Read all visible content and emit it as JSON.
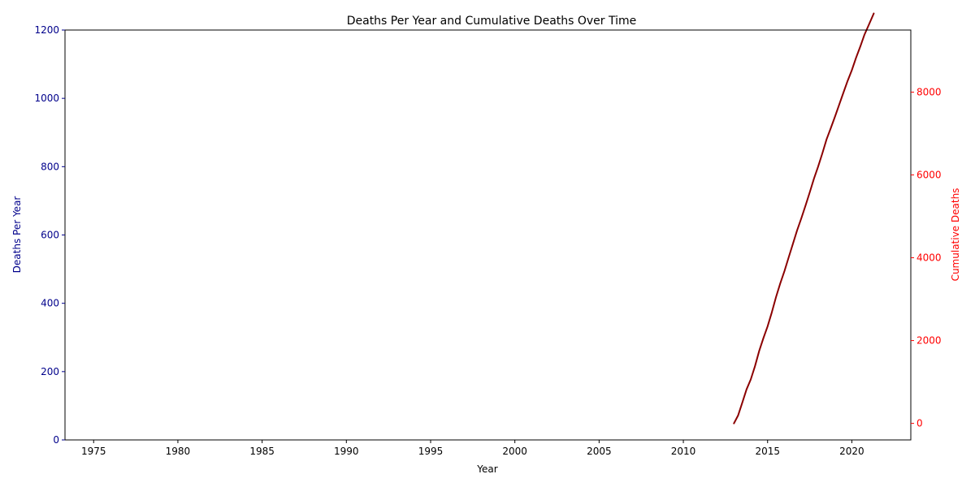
{
  "chart_data": {
    "type": "line",
    "title": "Deaths Per Year and Cumulative Deaths Over Time",
    "xlabel": "Year",
    "ylabel": "Deaths Per Year",
    "y2label": "Cumulative Deaths",
    "xlim": [
      1973.3,
      2023.5
    ],
    "ylim": [
      0,
      1200
    ],
    "y2lim": [
      -400,
      9500
    ],
    "x_ticks": [
      1975,
      1980,
      1985,
      1990,
      1995,
      2000,
      2005,
      2010,
      2015,
      2020
    ],
    "y_ticks": [
      0,
      200,
      400,
      600,
      800,
      1000,
      1200
    ],
    "y2_ticks": [
      0,
      2000,
      4000,
      6000,
      8000
    ],
    "grid": false,
    "colors": {
      "left_axis": "#00008b",
      "right_axis": "#ff0000",
      "line": "#8b0000",
      "text": "#000000"
    },
    "series": [
      {
        "axis": "right",
        "x": [
          2013.0,
          2013.25,
          2013.5,
          2013.75,
          2014.0,
          2014.25,
          2014.5,
          2014.75,
          2015.0,
          2015.25,
          2015.5,
          2015.75,
          2016.0,
          2016.25,
          2016.5,
          2016.75,
          2017.0,
          2017.25,
          2017.5,
          2017.75,
          2018.0,
          2018.25,
          2018.5,
          2018.75,
          2019.0,
          2019.25,
          2019.5,
          2019.75,
          2020.0,
          2020.25,
          2020.5,
          2020.75,
          2021.0,
          2021.3
        ],
        "y": [
          0,
          190,
          500,
          820,
          1060,
          1380,
          1750,
          2060,
          2340,
          2680,
          3050,
          3380,
          3680,
          4010,
          4330,
          4660,
          4950,
          5260,
          5580,
          5910,
          6200,
          6520,
          6860,
          7130,
          7410,
          7700,
          7990,
          8270,
          8530,
          8830,
          9100,
          9390,
          9620,
          9900
        ]
      }
    ]
  }
}
